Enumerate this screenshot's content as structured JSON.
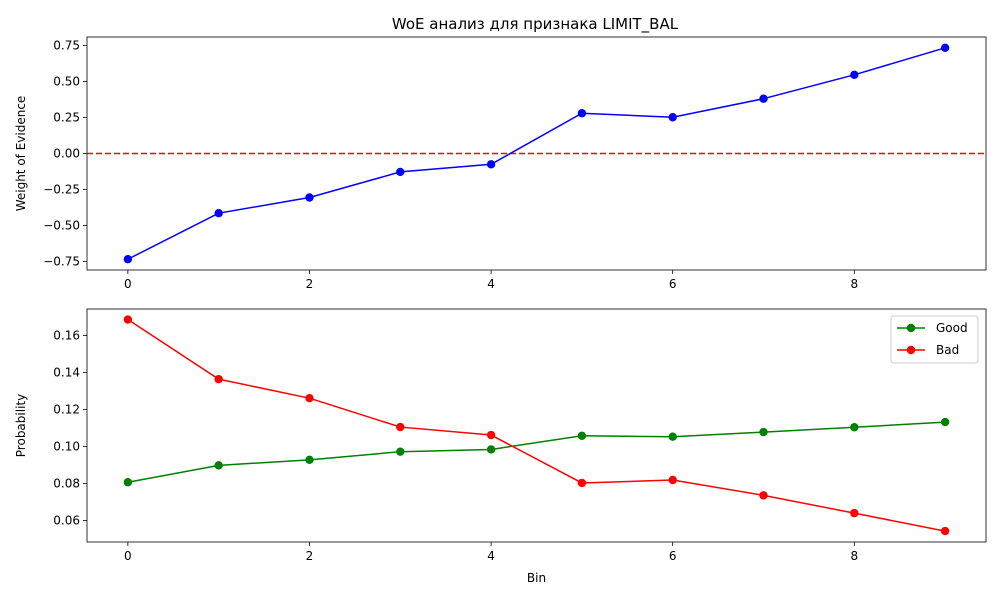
{
  "chart_data": [
    {
      "type": "line",
      "title": "WoE анализ для признака LIMIT_BAL",
      "xlabel": "",
      "ylabel": "Weight of Evidence",
      "x": [
        0,
        1,
        2,
        3,
        4,
        5,
        6,
        7,
        8,
        9
      ],
      "xlim": [
        -0.45,
        9.45
      ],
      "ylim": [
        -0.81,
        0.81
      ],
      "xticks": [
        "0",
        "2",
        "4",
        "6",
        "8"
      ],
      "yticks": [
        "−0.75",
        "−0.50",
        "−0.25",
        "0.00",
        "0.25",
        "0.50",
        "0.75"
      ],
      "grid": false,
      "series": [
        {
          "values": [
            -0.735,
            -0.415,
            -0.306,
            -0.128,
            -0.075,
            0.28,
            0.252,
            0.381,
            0.547,
            0.735
          ],
          "color": "#0000ff",
          "marker": "circle"
        }
      ],
      "reference_line": {
        "y": 0,
        "color": "#ff0000",
        "style": "dashed"
      }
    },
    {
      "type": "line",
      "title": "",
      "xlabel": "Bin",
      "ylabel": "Probability",
      "x": [
        0,
        1,
        2,
        3,
        4,
        5,
        6,
        7,
        8,
        9
      ],
      "xlim": [
        -0.45,
        9.45
      ],
      "ylim": [
        0.0484,
        0.1743
      ],
      "xticks": [
        "0",
        "2",
        "4",
        "6",
        "8"
      ],
      "yticks": [
        "0.06",
        "0.08",
        "0.10",
        "0.12",
        "0.14",
        "0.16"
      ],
      "grid": false,
      "legend": "top-right",
      "series": [
        {
          "name": "Good",
          "values": [
            0.0807,
            0.0898,
            0.0928,
            0.0972,
            0.0984,
            0.1058,
            0.1053,
            0.1078,
            0.1104,
            0.1132
          ],
          "color": "#008000",
          "marker": "circle"
        },
        {
          "name": "Bad",
          "values": [
            0.1686,
            0.1364,
            0.1261,
            0.1105,
            0.1062,
            0.0803,
            0.0819,
            0.0736,
            0.064,
            0.0543
          ],
          "color": "#ff0000",
          "marker": "circle"
        }
      ]
    }
  ]
}
